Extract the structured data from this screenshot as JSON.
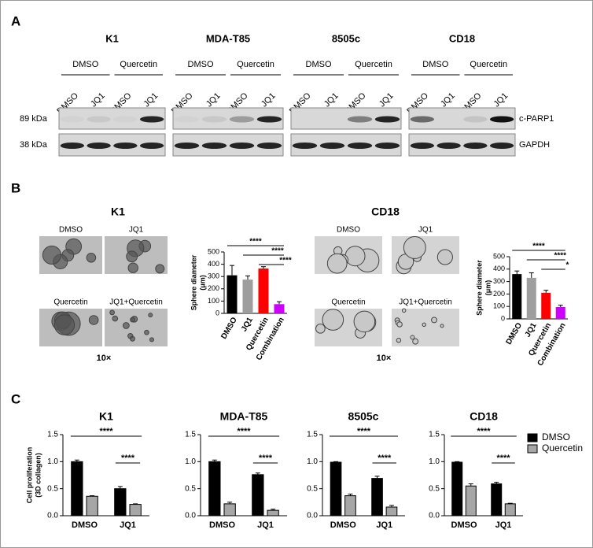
{
  "panel_a": {
    "label": "A",
    "blots": [
      {
        "title": "K1",
        "groups": [
          "DMSO",
          "Quercetin"
        ],
        "lanes": [
          "DMSO",
          "JQ1",
          "DMSO",
          "JQ1"
        ]
      },
      {
        "title": "MDA-T85",
        "groups": [
          "DMSO",
          "Quercetin"
        ],
        "lanes": [
          "DMSO",
          "JQ1",
          "DMSO",
          "JQ1"
        ]
      },
      {
        "title": "8505c",
        "groups": [
          "DMSO",
          "Quercetin"
        ],
        "lanes": [
          "DMSO",
          "JQ1",
          "DMSO",
          "JQ1"
        ]
      },
      {
        "title": "CD18",
        "groups": [
          "DMSO",
          "Quercetin"
        ],
        "lanes": [
          "DMSO",
          "JQ1",
          "DMSO",
          "JQ1"
        ]
      }
    ],
    "rows": [
      {
        "size": "89 kDa",
        "protein": "c-PARP1"
      },
      {
        "size": "38 kDa",
        "protein": "GAPDH"
      }
    ]
  },
  "panel_b": {
    "label": "B",
    "sets": [
      {
        "images": [
          "DMSO",
          "JQ1",
          "Quercetin",
          "JQ1+Quercetin"
        ],
        "magnification": "10×"
      },
      {
        "images": [
          "DMSO",
          "JQ1",
          "Quercetin",
          "JQ1+Quercetin"
        ],
        "magnification": "10×"
      }
    ]
  },
  "panel_c": {
    "label": "C"
  },
  "chart_data": [
    {
      "type": "bar",
      "title": "K1",
      "ylabel": [
        "Sphere diameter",
        "(μm)"
      ],
      "categories": [
        "DMSO",
        "JQ1",
        "Quercetin",
        "Combination"
      ],
      "values": [
        310,
        275,
        365,
        75
      ],
      "errors": [
        80,
        30,
        15,
        20
      ],
      "colors": [
        "#000000",
        "#9e9e9e",
        "#ff0000",
        "#cc00ff"
      ],
      "ylim": [
        0,
        500
      ],
      "yticks": [
        0,
        100,
        200,
        300,
        400,
        500
      ],
      "annotations": [
        "****",
        "****",
        "****"
      ]
    },
    {
      "type": "bar",
      "title": "CD18",
      "ylabel": [
        "Sphere diameter",
        "(μm)"
      ],
      "categories": [
        "DMSO",
        "JQ1",
        "Quercetin",
        "Combination"
      ],
      "values": [
        360,
        330,
        210,
        95
      ],
      "errors": [
        25,
        40,
        20,
        15
      ],
      "colors": [
        "#000000",
        "#9e9e9e",
        "#ff0000",
        "#cc00ff"
      ],
      "ylim": [
        0,
        500
      ],
      "yticks": [
        0,
        100,
        200,
        300,
        400,
        500
      ],
      "annotations": [
        "****",
        "****",
        "*"
      ]
    },
    {
      "type": "bar",
      "title": "K1",
      "ylabel": [
        "Cell proliferation",
        "(3D collagen)"
      ],
      "categories": [
        "DMSO",
        "JQ1"
      ],
      "series": [
        {
          "color": "#000000",
          "values": [
            1.0,
            0.5
          ],
          "errors": [
            0.03,
            0.04
          ]
        },
        {
          "color": "#a6a6a6",
          "values": [
            0.36,
            0.21
          ],
          "errors": [
            0.01,
            0.01
          ]
        }
      ],
      "ylim": [
        0,
        1.5
      ],
      "yticks": [
        {
          "value": 0,
          "label": "0.0"
        },
        {
          "value": 0.5,
          "label": "0.5"
        },
        {
          "value": 1,
          "label": "1.0"
        },
        {
          "value": 1.5,
          "label": "1.5"
        }
      ],
      "annotations": [
        "****",
        "****"
      ]
    },
    {
      "type": "bar",
      "title": "MDA-T85",
      "categories": [
        "DMSO",
        "JQ1"
      ],
      "series": [
        {
          "color": "#000000",
          "values": [
            1.0,
            0.76
          ],
          "errors": [
            0.03,
            0.03
          ]
        },
        {
          "color": "#a6a6a6",
          "values": [
            0.22,
            0.1
          ],
          "errors": [
            0.03,
            0.02
          ]
        }
      ],
      "ylim": [
        0,
        1.5
      ],
      "yticks": [
        {
          "value": 0,
          "label": "0.0"
        },
        {
          "value": 0.5,
          "label": "0.5"
        },
        {
          "value": 1,
          "label": "1.0"
        },
        {
          "value": 1.5,
          "label": "1.5"
        }
      ],
      "annotations": [
        "****",
        "****"
      ]
    },
    {
      "type": "bar",
      "title": "8505c",
      "categories": [
        "DMSO",
        "JQ1"
      ],
      "series": [
        {
          "color": "#000000",
          "values": [
            0.99,
            0.69
          ],
          "errors": [
            0.01,
            0.04
          ]
        },
        {
          "color": "#a6a6a6",
          "values": [
            0.37,
            0.16
          ],
          "errors": [
            0.03,
            0.03
          ]
        }
      ],
      "ylim": [
        0,
        1.5
      ],
      "yticks": [
        {
          "value": 0,
          "label": "0.0"
        },
        {
          "value": 0.5,
          "label": "0.5"
        },
        {
          "value": 1,
          "label": "1.0"
        },
        {
          "value": 1.5,
          "label": "1.5"
        }
      ],
      "annotations": [
        "****",
        "****"
      ]
    },
    {
      "type": "bar",
      "title": "CD18",
      "categories": [
        "DMSO",
        "JQ1"
      ],
      "series": [
        {
          "name": "DMSO",
          "color": "#000000",
          "values": [
            0.99,
            0.59
          ],
          "errors": [
            0.01,
            0.03
          ]
        },
        {
          "name": "Quercetin",
          "color": "#a6a6a6",
          "values": [
            0.55,
            0.22
          ],
          "errors": [
            0.04,
            0.01
          ]
        }
      ],
      "ylim": [
        0,
        1.5
      ],
      "yticks": [
        {
          "value": 0,
          "label": "0.0"
        },
        {
          "value": 0.5,
          "label": "0.5"
        },
        {
          "value": 1,
          "label": "1.0"
        },
        {
          "value": 1.5,
          "label": "1.5"
        }
      ],
      "annotations": [
        "****",
        "****"
      ],
      "legend": "right"
    }
  ]
}
